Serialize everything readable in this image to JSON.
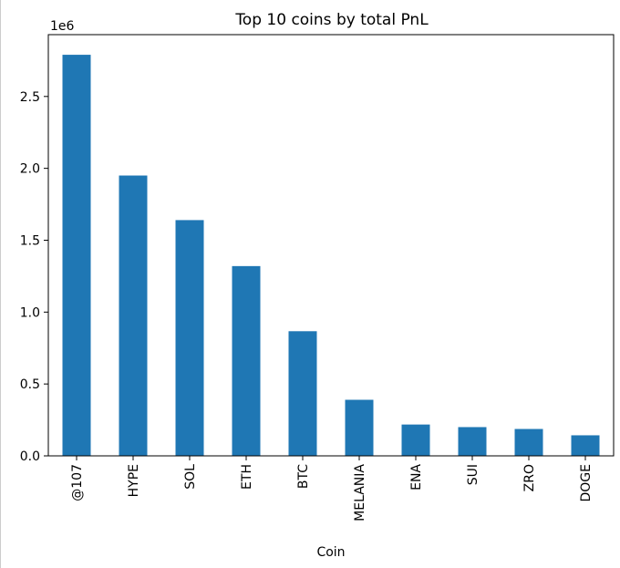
{
  "chart_data": {
    "type": "bar",
    "title": "Top 10 coins by total PnL",
    "xlabel": "Coin",
    "ylabel": "",
    "scale_label": "1e6",
    "categories": [
      "@107",
      "HYPE",
      "SOL",
      "ETH",
      "BTC",
      "MELANIA",
      "ENA",
      "SUI",
      "ZRO",
      "DOGE"
    ],
    "values": [
      2790000,
      1950000,
      1640000,
      1320000,
      867000,
      390000,
      218000,
      200000,
      187000,
      143000
    ],
    "ylim": [
      0,
      2930000
    ],
    "yticks": [
      0,
      500000,
      1000000,
      1500000,
      2000000,
      2500000
    ],
    "ytick_labels": [
      "0.0",
      "0.5",
      "1.0",
      "1.5",
      "2.0",
      "2.5"
    ],
    "bar_color": "#1f77b4",
    "grid": false,
    "legend": "none"
  }
}
